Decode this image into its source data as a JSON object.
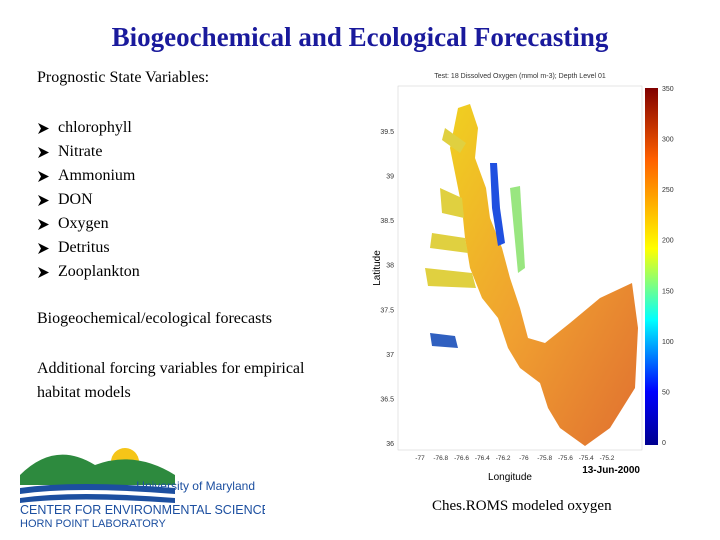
{
  "title": "Biogeochemical and Ecological Forecasting",
  "body": {
    "heading": "Prognostic State Variables:",
    "variables": [
      "chlorophyll",
      "Nitrate",
      "Ammonium",
      "DON",
      "Oxygen",
      "Detritus",
      "Zooplankton"
    ],
    "paragraphs": [
      "Biogeochemical/ecological forecasts",
      "Additional forcing variables for empirical habitat models"
    ]
  },
  "figure": {
    "title": "Test: 18 Dissolved Oxygen (mmol m-3); Depth Level 01",
    "y_label": "Latitude",
    "x_label": "Longitude",
    "date": "13-Jun-2000",
    "yticks": [
      "39.5",
      "39",
      "38.5",
      "38",
      "37.5",
      "37",
      "36.5",
      "36"
    ],
    "xticks": [
      "-77",
      "-76.8",
      "-76.6",
      "-76.4",
      "-76.2",
      "-76",
      "-75.8",
      "-75.6",
      "-75.4",
      "-75.2"
    ],
    "colorbar_ticks": [
      "350",
      "300",
      "250",
      "200",
      "150",
      "100",
      "50",
      "0"
    ],
    "caption": "Ches.ROMS modeled oxygen"
  },
  "logo": {
    "lines": [
      "University of Maryland",
      "CENTER FOR ENVIRONMENTAL SCIENCE",
      "HORN POINT LABORATORY"
    ]
  }
}
